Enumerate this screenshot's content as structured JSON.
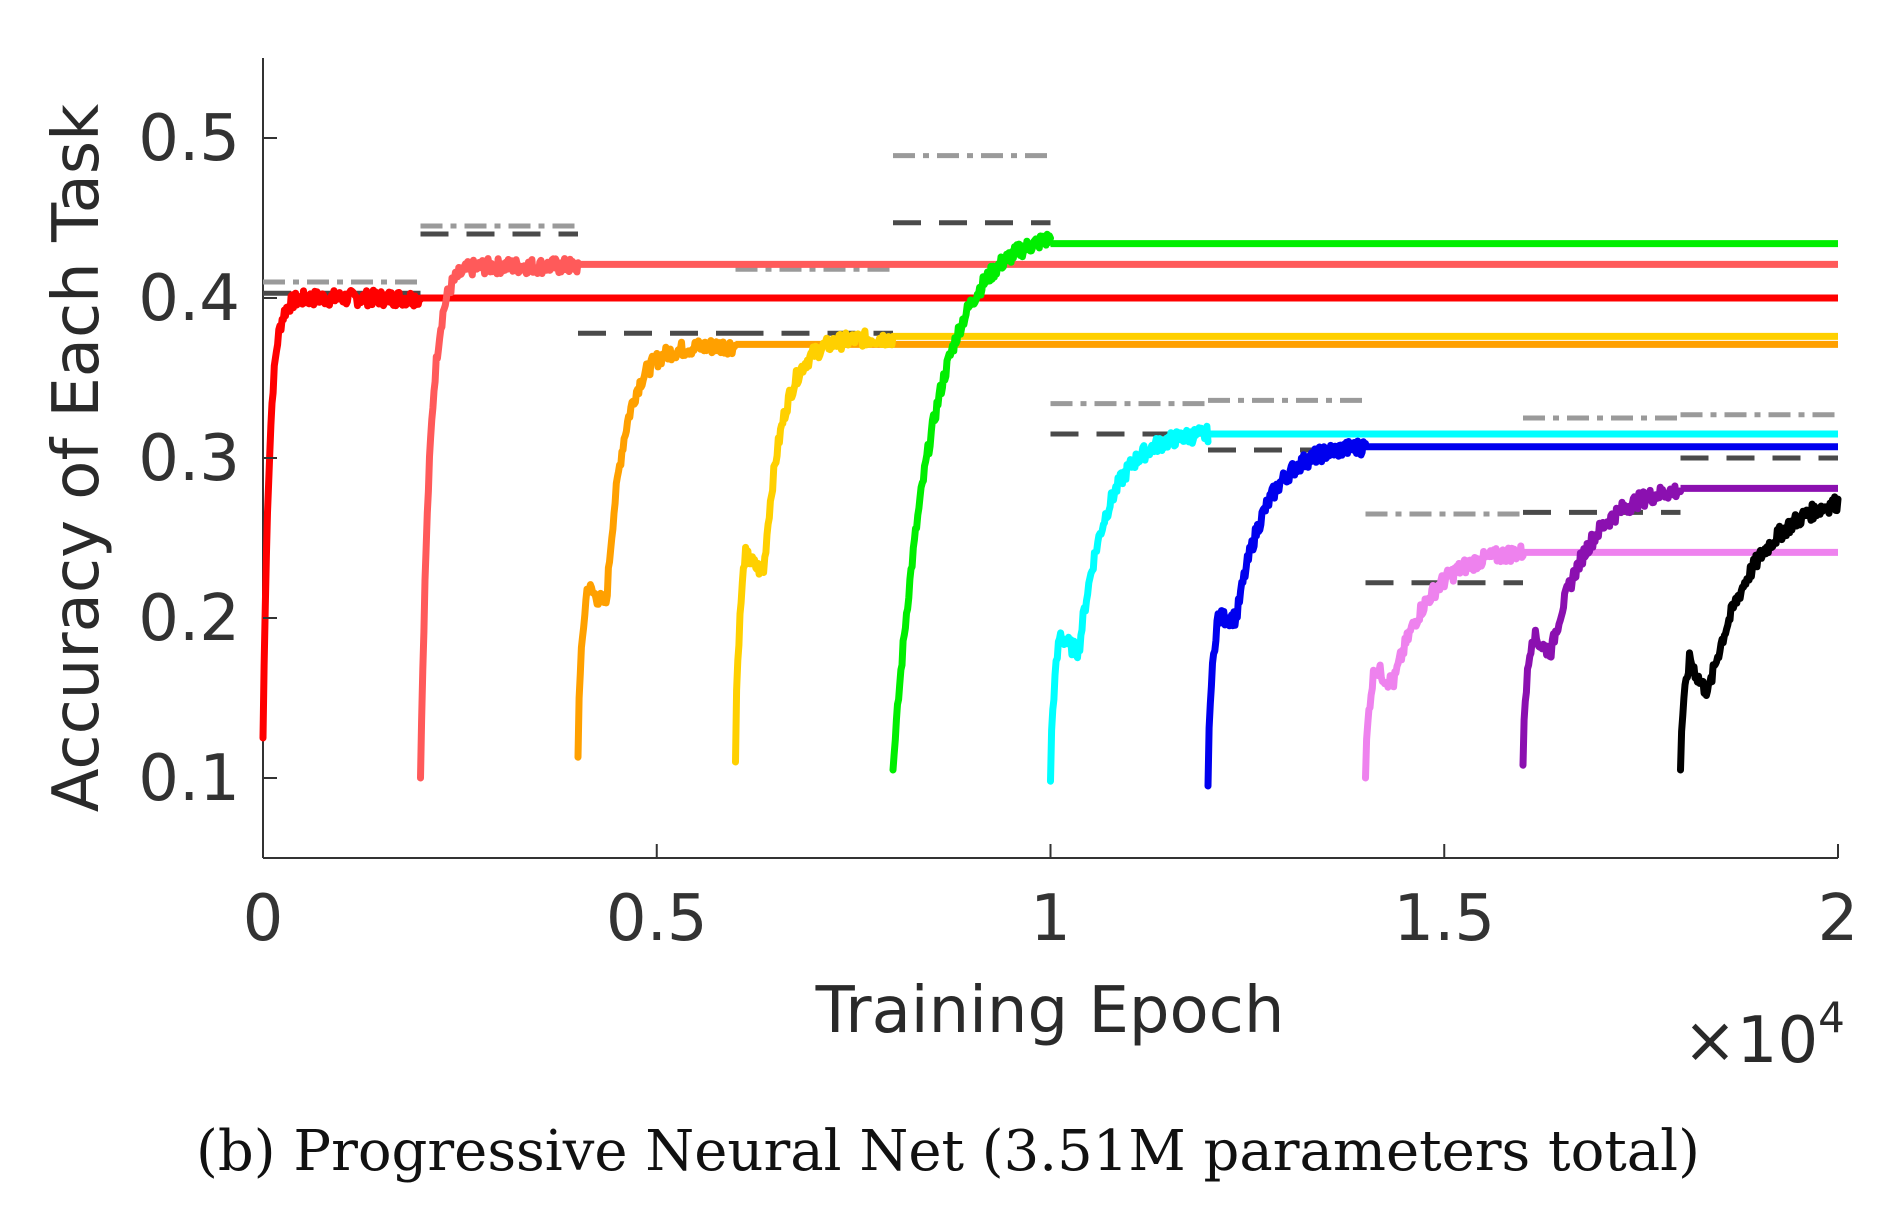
{
  "chart_data": {
    "type": "line",
    "caption": "(b) Progressive Neural Net (3.51M parameters total)",
    "xlabel": "Training Epoch",
    "ylabel": "Accuracy of Each Task",
    "x_multiplier": "×10",
    "x_multiplier_exp": "4",
    "xlim": [
      0,
      20000
    ],
    "ylim": [
      0.05,
      0.55
    ],
    "grid": false,
    "x_ticks": [
      {
        "value": 0,
        "label": "0"
      },
      {
        "value": 5000,
        "label": "0.5"
      },
      {
        "value": 10000,
        "label": "1"
      },
      {
        "value": 15000,
        "label": "1.5"
      },
      {
        "value": 20000,
        "label": "2"
      }
    ],
    "y_ticks": [
      {
        "value": 0.1,
        "label": "0.1"
      },
      {
        "value": 0.2,
        "label": "0.2"
      },
      {
        "value": 0.3,
        "label": "0.3"
      },
      {
        "value": 0.4,
        "label": "0.4"
      },
      {
        "value": 0.5,
        "label": "0.5"
      }
    ],
    "series": [
      {
        "color": "#ff0000",
        "start": 0,
        "end": 2000,
        "y0": 0.125,
        "y1": 0.4,
        "k": 0.04,
        "final": 0.4,
        "knee": null
      },
      {
        "color": "#ff5a5a",
        "start": 2000,
        "end": 4000,
        "y0": 0.1,
        "y1": 0.42,
        "k": 0.06,
        "final": 0.421,
        "knee": null
      },
      {
        "color": "#ffa000",
        "start": 4000,
        "end": 6000,
        "y0": 0.113,
        "y1": 0.37,
        "k": 0.14,
        "final": 0.371,
        "knee": [
          0.22,
          0.21
        ]
      },
      {
        "color": "#ffd000",
        "start": 6000,
        "end": 8000,
        "y0": 0.11,
        "y1": 0.375,
        "k": 0.16,
        "final": 0.376,
        "knee": [
          0.24,
          0.23
        ]
      },
      {
        "color": "#00ee00",
        "start": 8000,
        "end": 10000,
        "y0": 0.105,
        "y1": 0.437,
        "k": 0.25,
        "final": 0.434,
        "knee": null
      },
      {
        "color": "#00ffff",
        "start": 10000,
        "end": 12000,
        "y0": 0.098,
        "y1": 0.315,
        "k": 0.24,
        "final": 0.315,
        "knee": [
          0.19,
          0.18
        ]
      },
      {
        "color": "#0000ee",
        "start": 12000,
        "end": 14000,
        "y0": 0.095,
        "y1": 0.307,
        "k": 0.25,
        "final": 0.307,
        "knee": [
          0.2,
          0.2
        ]
      },
      {
        "color": "#ee82ee",
        "start": 14000,
        "end": 16000,
        "y0": 0.1,
        "y1": 0.241,
        "k": 0.3,
        "final": 0.241,
        "knee": [
          0.17,
          0.16
        ]
      },
      {
        "color": "#8b10b0",
        "start": 16000,
        "end": 18000,
        "y0": 0.108,
        "y1": 0.28,
        "k": 0.32,
        "final": 0.281,
        "knee": [
          0.19,
          0.18
        ]
      },
      {
        "color": "#000000",
        "start": 18000,
        "end": 20000,
        "y0": 0.105,
        "y1": 0.272,
        "k": 0.4,
        "final": null,
        "knee": [
          0.175,
          0.155
        ]
      }
    ],
    "reference_lines": [
      {
        "style": "dashdot",
        "color": "#9a9a9a",
        "x0": 0,
        "x1": 2000,
        "y": 0.41
      },
      {
        "style": "dash",
        "color": "#4a4a4a",
        "x0": 0,
        "x1": 2000,
        "y": 0.403
      },
      {
        "style": "dashdot",
        "color": "#9a9a9a",
        "x0": 2000,
        "x1": 4000,
        "y": 0.445
      },
      {
        "style": "dash",
        "color": "#4a4a4a",
        "x0": 2000,
        "x1": 4000,
        "y": 0.44
      },
      {
        "style": "dashdot",
        "color": "#9a9a9a",
        "x0": 4000,
        "x1": 6000,
        "y": 0.4
      },
      {
        "style": "dash",
        "color": "#4a4a4a",
        "x0": 4000,
        "x1": 6000,
        "y": 0.378
      },
      {
        "style": "dashdot",
        "color": "#9a9a9a",
        "x0": 6000,
        "x1": 8000,
        "y": 0.418
      },
      {
        "style": "dash",
        "color": "#4a4a4a",
        "x0": 6000,
        "x1": 8000,
        "y": 0.378
      },
      {
        "style": "dashdot",
        "color": "#9a9a9a",
        "x0": 8000,
        "x1": 10000,
        "y": 0.489
      },
      {
        "style": "dash",
        "color": "#4a4a4a",
        "x0": 8000,
        "x1": 10000,
        "y": 0.447
      },
      {
        "style": "dashdot",
        "color": "#9a9a9a",
        "x0": 10000,
        "x1": 12000,
        "y": 0.334
      },
      {
        "style": "dash",
        "color": "#4a4a4a",
        "x0": 10000,
        "x1": 12000,
        "y": 0.315
      },
      {
        "style": "dashdot",
        "color": "#9a9a9a",
        "x0": 12000,
        "x1": 14000,
        "y": 0.336
      },
      {
        "style": "dash",
        "color": "#4a4a4a",
        "x0": 12000,
        "x1": 14000,
        "y": 0.305
      },
      {
        "style": "dashdot",
        "color": "#9a9a9a",
        "x0": 14000,
        "x1": 16000,
        "y": 0.265
      },
      {
        "style": "dash",
        "color": "#4a4a4a",
        "x0": 14000,
        "x1": 16000,
        "y": 0.222
      },
      {
        "style": "dashdot",
        "color": "#9a9a9a",
        "x0": 16000,
        "x1": 18000,
        "y": 0.325
      },
      {
        "style": "dash",
        "color": "#4a4a4a",
        "x0": 16000,
        "x1": 18000,
        "y": 0.266
      },
      {
        "style": "dashdot",
        "color": "#9a9a9a",
        "x0": 18000,
        "x1": 20000,
        "y": 0.327
      },
      {
        "style": "dash",
        "color": "#4a4a4a",
        "x0": 18000,
        "x1": 20000,
        "y": 0.3
      }
    ]
  }
}
